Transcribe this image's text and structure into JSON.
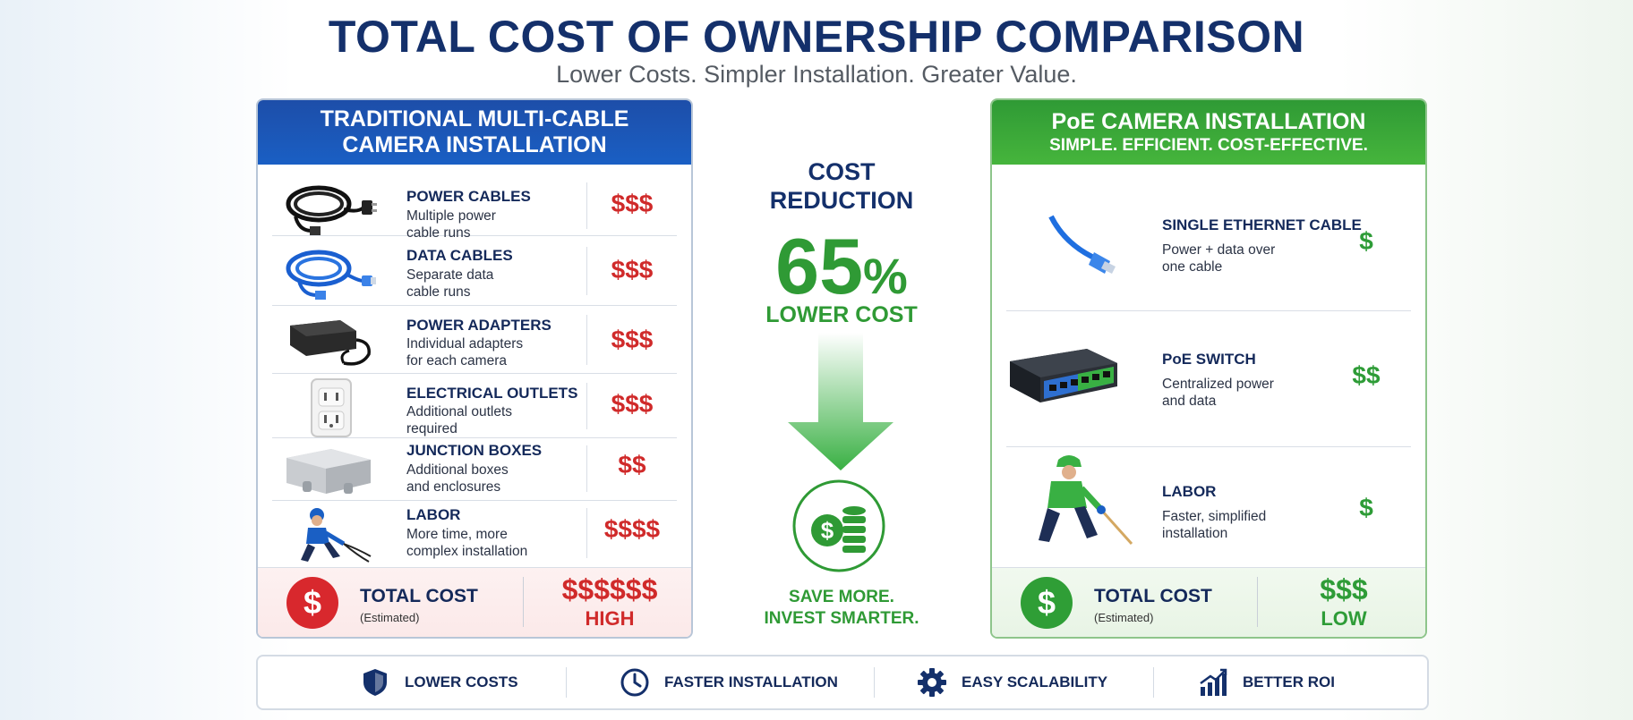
{
  "header": {
    "title": "TOTAL COST OF OWNERSHIP COMPARISON",
    "subtitle": "Lower Costs. Simpler Installation. Greater Value."
  },
  "traditional": {
    "heading_line1": "TRADITIONAL MULTI-CABLE",
    "heading_line2": "CAMERA INSTALLATION",
    "items": [
      {
        "icon": "power-cable-icon",
        "title": "POWER CABLES",
        "desc1": "Multiple power",
        "desc2": "cable runs",
        "cost": "$$$"
      },
      {
        "icon": "data-cable-icon",
        "title": "DATA CABLES",
        "desc1": "Separate data",
        "desc2": "cable runs",
        "cost": "$$$"
      },
      {
        "icon": "power-adapter-icon",
        "title": "POWER ADAPTERS",
        "desc1": "Individual adapters",
        "desc2": "for each camera",
        "cost": "$$$"
      },
      {
        "icon": "electrical-outlet-icon",
        "title": "ELECTRICAL OUTLETS",
        "desc1": "Additional outlets",
        "desc2": "required",
        "cost": "$$$"
      },
      {
        "icon": "junction-box-icon",
        "title": "JUNCTION BOXES",
        "desc1": "Additional boxes",
        "desc2": "and enclosures",
        "cost": "$$"
      },
      {
        "icon": "worker-icon",
        "title": "LABOR",
        "desc1": "More time, more",
        "desc2": "complex installation",
        "cost": "$$$$"
      }
    ],
    "total": {
      "symbol": "$",
      "label": "TOTAL COST",
      "sub": "(Estimated)",
      "value": "$$$$$$",
      "level": "HIGH"
    }
  },
  "poe": {
    "heading_line1": "PoE CAMERA INSTALLATION",
    "heading_line2": "SIMPLE. EFFICIENT. COST-EFFECTIVE.",
    "items": [
      {
        "icon": "ethernet-cable-icon",
        "title": "SINGLE ETHERNET CABLE",
        "desc1": "Power + data over",
        "desc2": "one cable",
        "cost": "$"
      },
      {
        "icon": "poe-switch-icon",
        "title": "PoE SWITCH",
        "desc1": "Centralized power",
        "desc2": "and data",
        "cost": "$$"
      },
      {
        "icon": "worker-icon",
        "title": "LABOR",
        "desc1": "Faster, simplified",
        "desc2": "installation",
        "cost": "$"
      }
    ],
    "total": {
      "symbol": "$",
      "label": "TOTAL COST",
      "sub": "(Estimated)",
      "value": "$$$",
      "level": "LOW"
    }
  },
  "center": {
    "line1": "COST",
    "line2": "REDUCTION",
    "percent": "65",
    "percent_sign": "%",
    "lower": "LOWER COST",
    "slogan1": "SAVE MORE.",
    "slogan2": "INVEST SMARTER.",
    "coin_symbol": "$"
  },
  "benefits": [
    {
      "icon": "shield-icon",
      "label": "LOWER COSTS"
    },
    {
      "icon": "clock-icon",
      "label": "FASTER INSTALLATION"
    },
    {
      "icon": "gear-icon",
      "label": "EASY SCALABILITY"
    },
    {
      "icon": "growth-chart-icon",
      "label": "BETTER ROI"
    }
  ],
  "colors": {
    "navy": "#14306b",
    "green": "#2f9a35",
    "red": "#d02a2a",
    "blue": "#1d4ea9"
  }
}
